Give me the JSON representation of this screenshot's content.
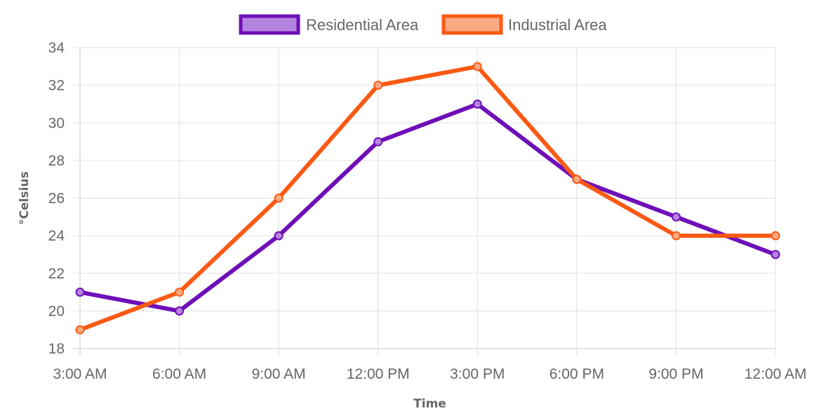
{
  "chart_data": {
    "type": "line",
    "title": "",
    "xlabel": "Time",
    "ylabel": "°Celsius",
    "categories": [
      "3:00 AM",
      "6:00 AM",
      "9:00 AM",
      "12:00 PM",
      "3:00 PM",
      "6:00 PM",
      "9:00 PM",
      "12:00 AM"
    ],
    "ylim": [
      18,
      34
    ],
    "yticks": [
      18,
      20,
      22,
      24,
      26,
      28,
      30,
      32,
      34
    ],
    "grid": true,
    "legend_position": "top",
    "series": [
      {
        "name": "Residential Area",
        "values": [
          21,
          20,
          24,
          29,
          31,
          27,
          25,
          23
        ],
        "color": "#6f0fb8",
        "fill": "#b584e0"
      },
      {
        "name": "Industrial Area",
        "values": [
          19,
          21,
          26,
          32,
          33,
          27,
          24,
          24
        ],
        "color": "#fa5a14",
        "fill": "#fcaa82"
      }
    ]
  }
}
